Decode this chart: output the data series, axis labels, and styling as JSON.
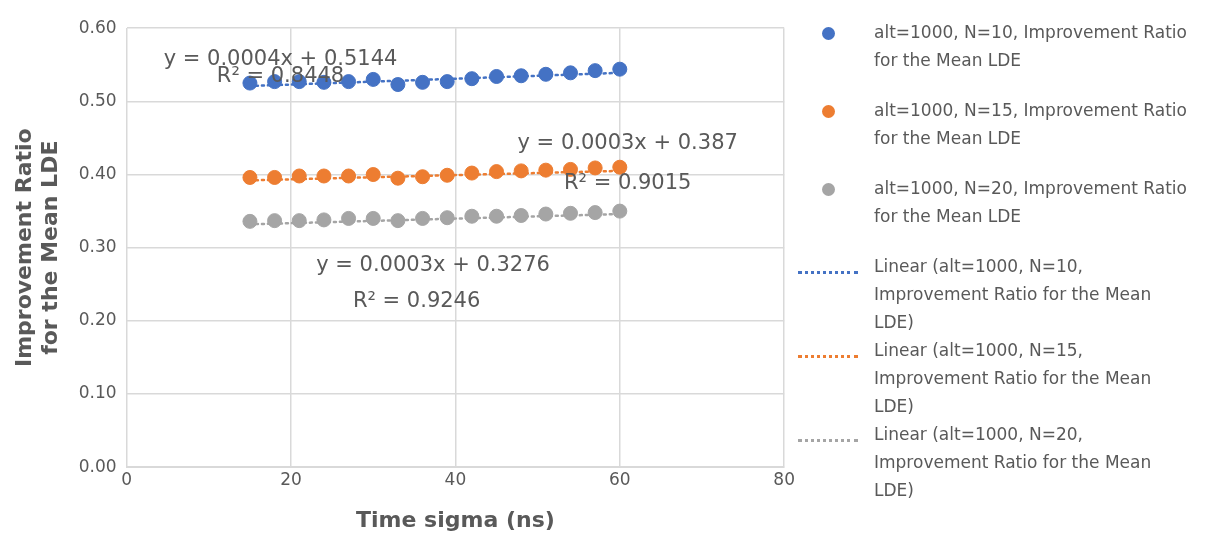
{
  "chart_data": {
    "type": "scatter",
    "xlabel": "Time sigma (ns)",
    "ylabel": "Improvement Ratio for the Mean LDE",
    "xlim": [
      0,
      80
    ],
    "xticks": [
      0,
      20,
      40,
      60,
      80
    ],
    "ylim": [
      0,
      0.6
    ],
    "yticks": [
      {
        "value": 0,
        "label": "0.00"
      },
      {
        "value": 0.1,
        "label": "0.10"
      },
      {
        "value": 0.2,
        "label": "0.20"
      },
      {
        "value": 0.3,
        "label": "0.30"
      },
      {
        "value": 0.4,
        "label": "0.40"
      },
      {
        "value": 0.5,
        "label": "0.50"
      },
      {
        "value": 0.6,
        "label": "0.60"
      }
    ],
    "grid": true,
    "legend": "right",
    "series": [
      {
        "name": "alt=1000, N=10, Improvement Ratio for the Mean LDE",
        "marker": "circle",
        "color": "#4472c4",
        "x": [
          15,
          18,
          21,
          24,
          27,
          30,
          33,
          36,
          39,
          42,
          45,
          48,
          51,
          54,
          57,
          60
        ],
        "values": [
          0.525,
          0.527,
          0.527,
          0.526,
          0.527,
          0.53,
          0.523,
          0.526,
          0.527,
          0.531,
          0.534,
          0.535,
          0.537,
          0.539,
          0.542,
          0.544
        ]
      },
      {
        "name": "alt=1000, N=15, Improvement Ratio for the Mean LDE",
        "marker": "circle",
        "color": "#ed7d31",
        "x": [
          15,
          18,
          21,
          24,
          27,
          30,
          33,
          36,
          39,
          42,
          45,
          48,
          51,
          54,
          57,
          60
        ],
        "values": [
          0.396,
          0.396,
          0.398,
          0.398,
          0.398,
          0.4,
          0.395,
          0.397,
          0.399,
          0.402,
          0.404,
          0.405,
          0.406,
          0.407,
          0.409,
          0.41
        ]
      },
      {
        "name": "alt=1000, N=20, Improvement Ratio for the Mean LDE",
        "marker": "circle",
        "color": "#a5a5a5",
        "x": [
          15,
          18,
          21,
          24,
          27,
          30,
          33,
          36,
          39,
          42,
          45,
          48,
          51,
          54,
          57,
          60
        ],
        "values": [
          0.336,
          0.337,
          0.337,
          0.338,
          0.34,
          0.34,
          0.337,
          0.34,
          0.341,
          0.343,
          0.343,
          0.344,
          0.346,
          0.347,
          0.348,
          0.35
        ]
      },
      {
        "name": "Linear (alt=1000, N=10, Improvement Ratio for the Mean LDE)",
        "type": "line",
        "marker": "none",
        "line_style": "dotted",
        "color": "#4472c4",
        "x": [
          15,
          60
        ],
        "values": [
          0.521,
          0.539
        ]
      },
      {
        "name": "Linear (alt=1000, N=15, Improvement Ratio for the Mean LDE)",
        "type": "line",
        "marker": "none",
        "line_style": "dotted",
        "color": "#ed7d31",
        "x": [
          15,
          60
        ],
        "values": [
          0.392,
          0.405
        ]
      },
      {
        "name": "Linear (alt=1000, N=20, Improvement Ratio for the Mean LDE)",
        "type": "line",
        "marker": "none",
        "line_style": "dotted",
        "color": "#a5a5a5",
        "x": [
          15,
          60
        ],
        "values": [
          0.332,
          0.346
        ]
      }
    ],
    "annotations": [
      "y = 0.0004x + 0.5144",
      "R² = 0.8448",
      "y = 0.0003x + 0.387",
      "R² = 0.9015",
      "y = 0.0003x + 0.3276",
      "R² = 0.9246"
    ]
  }
}
